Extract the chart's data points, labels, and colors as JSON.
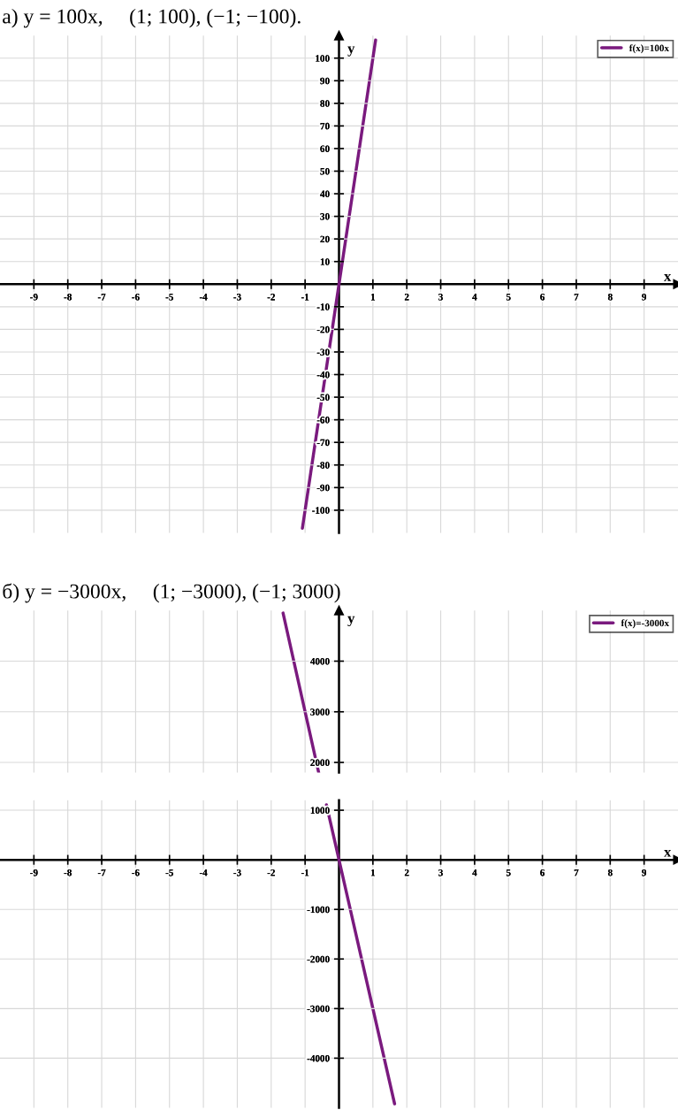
{
  "chart_data": [
    {
      "type": "line",
      "title": "а) y = 100x,     (1; 100), (−1; −100).",
      "xlabel": "x",
      "ylabel": "y",
      "series": [
        {
          "name": "f(x)=100x",
          "color": "#7a1a7e",
          "x": [
            -1.08,
            1.08
          ],
          "values": [
            -108,
            108
          ]
        }
      ],
      "xlim": [
        -10,
        10
      ],
      "ylim": [
        -110,
        110
      ],
      "xticks": [
        -9,
        -8,
        -7,
        -6,
        -5,
        -4,
        -3,
        -2,
        -1,
        1,
        2,
        3,
        4,
        5,
        6,
        7,
        8,
        9
      ],
      "yticks": [
        -100,
        -90,
        -80,
        -70,
        -60,
        -50,
        -40,
        -30,
        -20,
        -10,
        10,
        20,
        30,
        40,
        50,
        60,
        70,
        80,
        90,
        100
      ],
      "grid": true,
      "legend": "top right"
    },
    {
      "type": "line",
      "title": "б) y = −3000x,     (1; −3000), (−1; 3000)",
      "ylabel": "y",
      "series": [
        {
          "name": "f(x)=-3000x",
          "color": "#7a1a7e",
          "x": [
            -1.65,
            -0.6
          ],
          "values": [
            4950,
            1800
          ]
        }
      ],
      "xlim": [
        -10,
        10
      ],
      "ylim": [
        1800,
        5000
      ],
      "xticks": [
        -9,
        -8,
        -7,
        -6,
        -5,
        -4,
        -3,
        -2,
        -1,
        1,
        2,
        3,
        4,
        5,
        6,
        7,
        8,
        9
      ],
      "yticks": [
        2000,
        3000,
        4000
      ],
      "tick_labels": "y",
      "grid": true,
      "legend": "top right"
    },
    {
      "type": "line",
      "xlabel": "x",
      "series": [
        {
          "color": "#7a1a7e",
          "x": [
            -0.37,
            1.64
          ],
          "values": [
            1110,
            -4920
          ]
        }
      ],
      "xlim": [
        -10,
        10
      ],
      "ylim": [
        -5000,
        1200
      ],
      "xticks": [
        -9,
        -8,
        -7,
        -6,
        -5,
        -4,
        -3,
        -2,
        -1,
        1,
        2,
        3,
        4,
        5,
        6,
        7,
        8,
        9
      ],
      "yticks": [
        -4000,
        -3000,
        -2000,
        -1000,
        1000
      ],
      "grid": true
    }
  ]
}
